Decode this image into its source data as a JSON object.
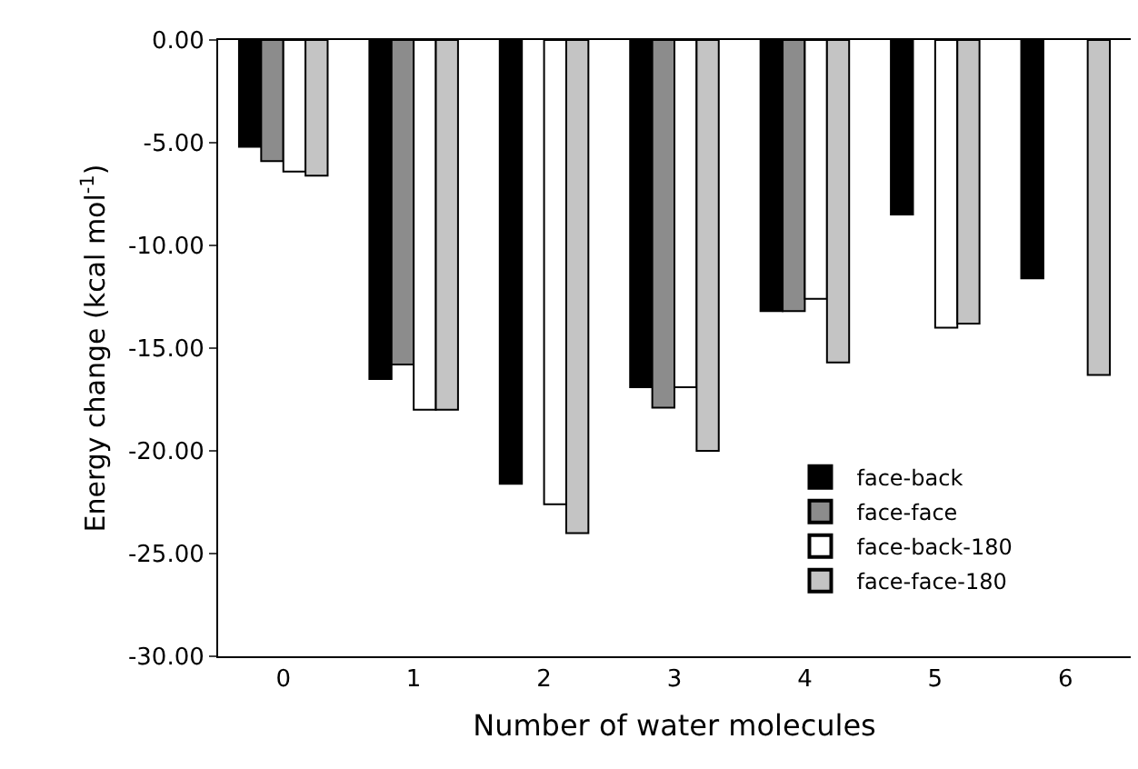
{
  "chart_data": {
    "type": "bar",
    "xlabel": "Number of water molecules",
    "ylabel": "Energy change (kcal mol$^{-1}$)",
    "categories": [
      "0",
      "1",
      "2",
      "3",
      "4",
      "5",
      "6"
    ],
    "series": [
      {
        "name": "face-back",
        "color": "#000000",
        "values": [
          -5.2,
          -16.5,
          -21.6,
          -16.9,
          -13.2,
          -8.5,
          -11.6
        ]
      },
      {
        "name": "face-face",
        "color": "#8c8c8c",
        "values": [
          -5.9,
          -15.8,
          null,
          -17.9,
          -13.2,
          null,
          null
        ]
      },
      {
        "name": "face-back-180",
        "color": "#ffffff",
        "values": [
          -6.4,
          -18.0,
          -22.6,
          -16.9,
          -12.6,
          -14.0,
          null
        ]
      },
      {
        "name": "face-face-180",
        "color": "#c4c4c4",
        "values": [
          -6.6,
          -18.0,
          -24.0,
          -20.0,
          -15.7,
          -13.8,
          -16.3
        ]
      }
    ],
    "ylim": [
      -30,
      0
    ],
    "yticks": [
      {
        "value": 0,
        "label": "0.00"
      },
      {
        "value": -5,
        "label": "-5.00"
      },
      {
        "value": -10,
        "label": "-10.00"
      },
      {
        "value": -15,
        "label": "-15.00"
      },
      {
        "value": -20,
        "label": "-20.00"
      },
      {
        "value": -25,
        "label": "-25.00"
      },
      {
        "value": -30,
        "label": "-30.00"
      }
    ],
    "legend": "bottom right"
  }
}
